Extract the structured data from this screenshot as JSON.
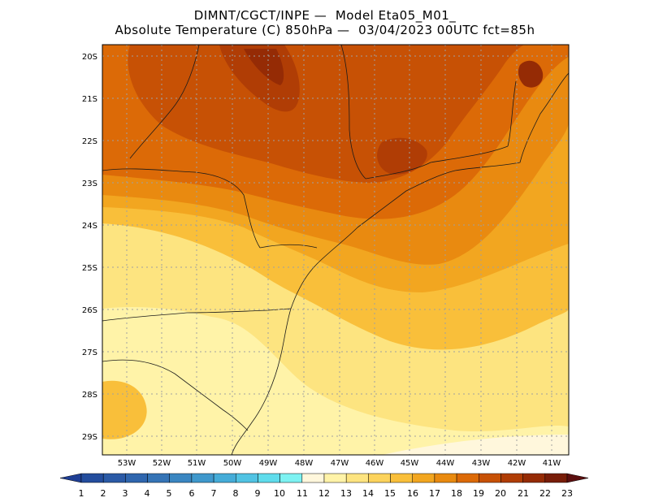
{
  "header": {
    "title_line1": "DIMNT/CGCT/INPE —  Model Eta05_M01_",
    "title_line2": "Absolute Temperature (C) 850hPa —  03/04/2023 00UTC fct=85h"
  },
  "map": {
    "lon_range": [
      -54,
      -40.5
    ],
    "lat_range": [
      -29.4,
      -19.8
    ],
    "lat_ticks": [
      "20S",
      "21S",
      "22S",
      "23S",
      "24S",
      "25S",
      "26S",
      "27S",
      "28S",
      "29S"
    ],
    "lon_ticks": [
      "53W",
      "52W",
      "51W",
      "50W",
      "49W",
      "48W",
      "47W",
      "46W",
      "45W",
      "44W",
      "43W",
      "42W",
      "41W"
    ],
    "grid": "dotted"
  },
  "colorbar": {
    "labels": [
      "1",
      "2",
      "3",
      "4",
      "5",
      "6",
      "7",
      "8",
      "9",
      "10",
      "11",
      "12",
      "13",
      "14",
      "15",
      "16",
      "17",
      "18",
      "19",
      "20",
      "21",
      "22",
      "23"
    ],
    "colors": [
      "#1f3f95",
      "#244d9d",
      "#2b5aa6",
      "#2f66ae",
      "#3574b6",
      "#3a86c1",
      "#3f98cc",
      "#45acd8",
      "#51c3e3",
      "#5fdcec",
      "#7df2f2",
      "#fff7dc",
      "#fff3a8",
      "#fde480",
      "#fcd35c",
      "#f9bf3a",
      "#f2a620",
      "#e98a10",
      "#dc6a07",
      "#c75105",
      "#b03d05",
      "#952b05",
      "#781d08",
      "#5c0f0f"
    ],
    "arrow_left_color": "#1f3f95",
    "arrow_right_color": "#5c0f0f"
  }
}
